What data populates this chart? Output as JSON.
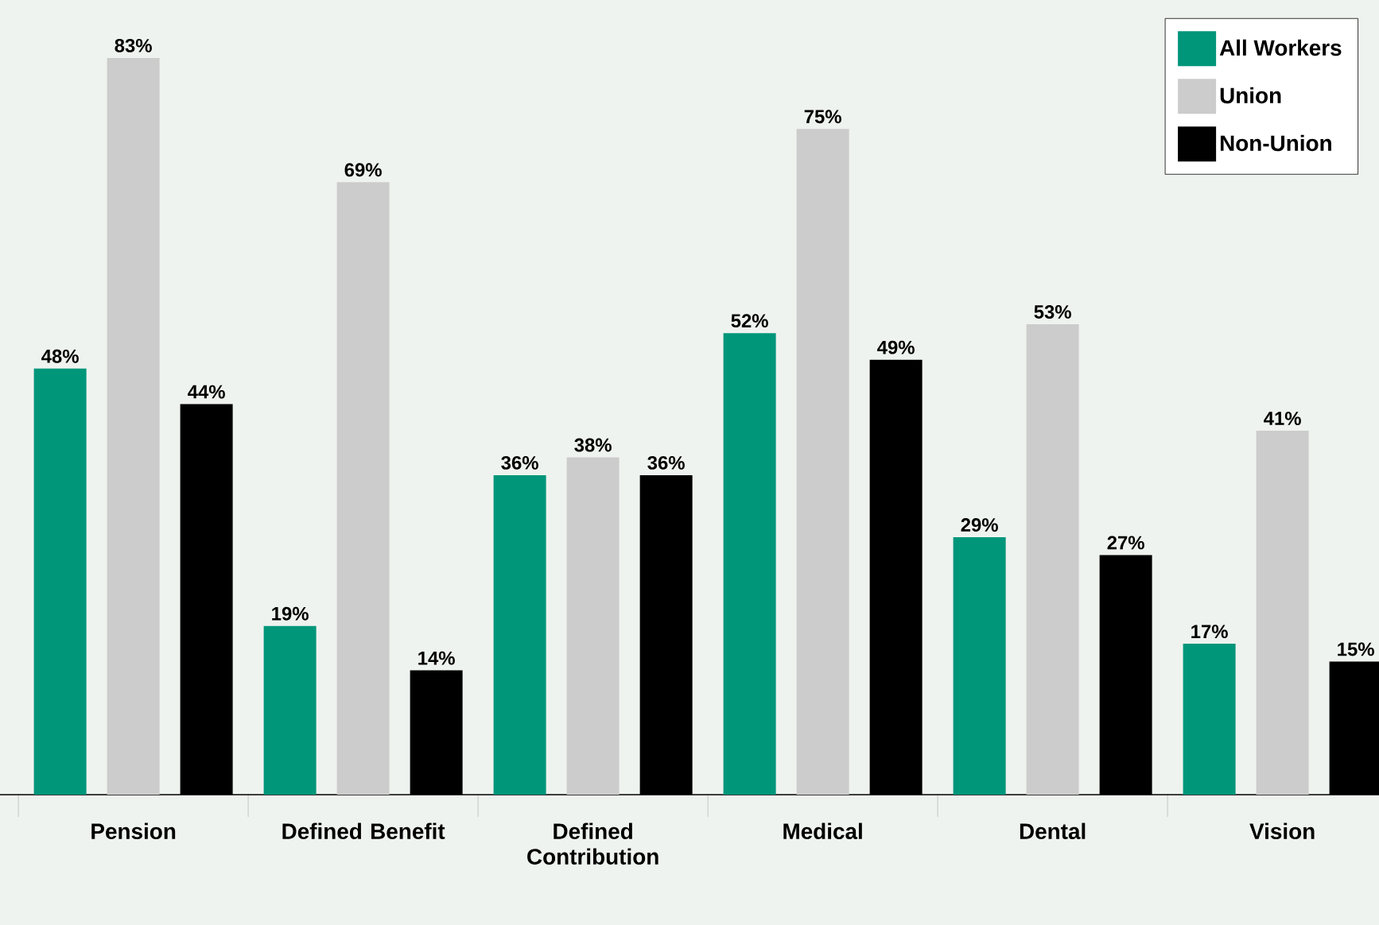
{
  "chart_data": {
    "type": "bar",
    "categories": [
      "Pension",
      "Defined Benefit",
      "Defined Contribution",
      "Medical",
      "Dental",
      "Vision"
    ],
    "series": [
      {
        "name": "All Workers",
        "color": "#00967a",
        "values": [
          48,
          19,
          36,
          52,
          29,
          17
        ],
        "value_labels": [
          "48%",
          "19%",
          "36%",
          "52%",
          "29%",
          "17%"
        ]
      },
      {
        "name": "Union",
        "color": "#cccccc",
        "values": [
          83,
          69,
          38,
          75,
          53,
          41
        ],
        "value_labels": [
          "83%",
          "69%",
          "38%",
          "75%",
          "53%",
          "41%"
        ]
      },
      {
        "name": "Non-Union",
        "color": "#000000",
        "values": [
          44,
          14,
          36,
          49,
          27,
          15
        ],
        "value_labels": [
          "44%",
          "14%",
          "36%",
          "49%",
          "27%",
          "15%"
        ]
      }
    ],
    "legend": "top right"
  }
}
